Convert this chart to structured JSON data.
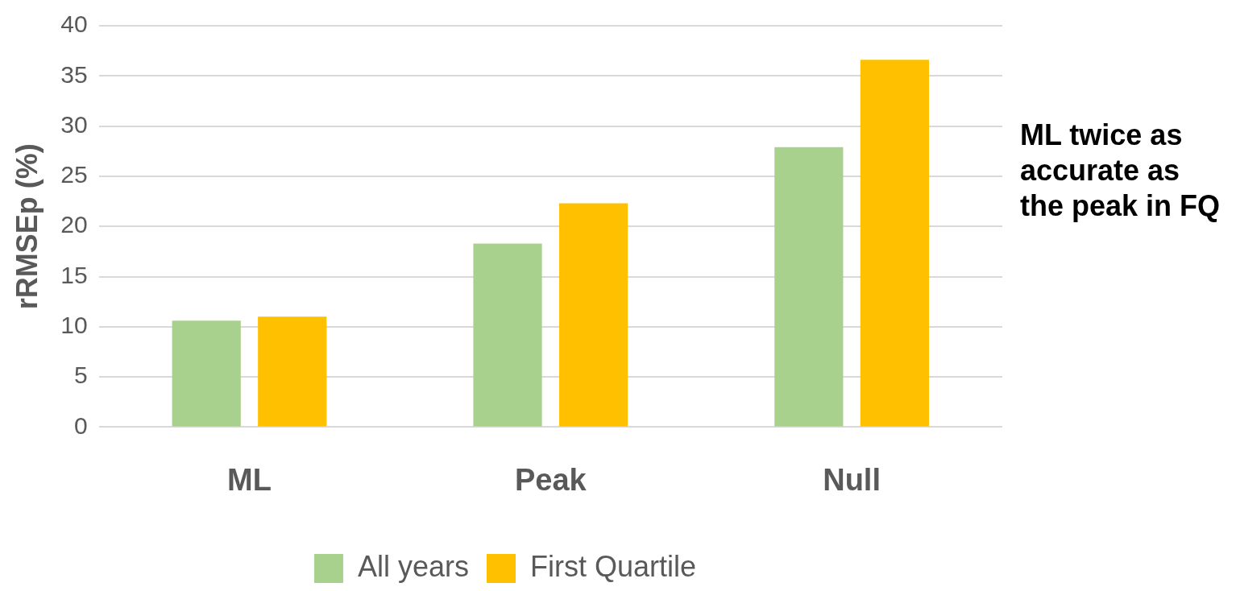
{
  "chart_data": {
    "type": "bar",
    "ylabel": "rRMSEp (%)",
    "categories": [
      "ML",
      "Peak",
      "Null"
    ],
    "series": [
      {
        "name": "All years",
        "color": "#a9d18e",
        "values": [
          10.6,
          18.3,
          27.9
        ]
      },
      {
        "name": "First Quartile",
        "color": "#ffc000",
        "values": [
          11.0,
          22.3,
          36.6
        ]
      }
    ],
    "ylim": [
      0,
      40
    ],
    "yticks": [
      0,
      5,
      10,
      15,
      20,
      25,
      30,
      35,
      40
    ],
    "grid": "y",
    "legend": "bottom",
    "annotations": [
      "ML twice as accurate as the peak in FQ"
    ]
  }
}
